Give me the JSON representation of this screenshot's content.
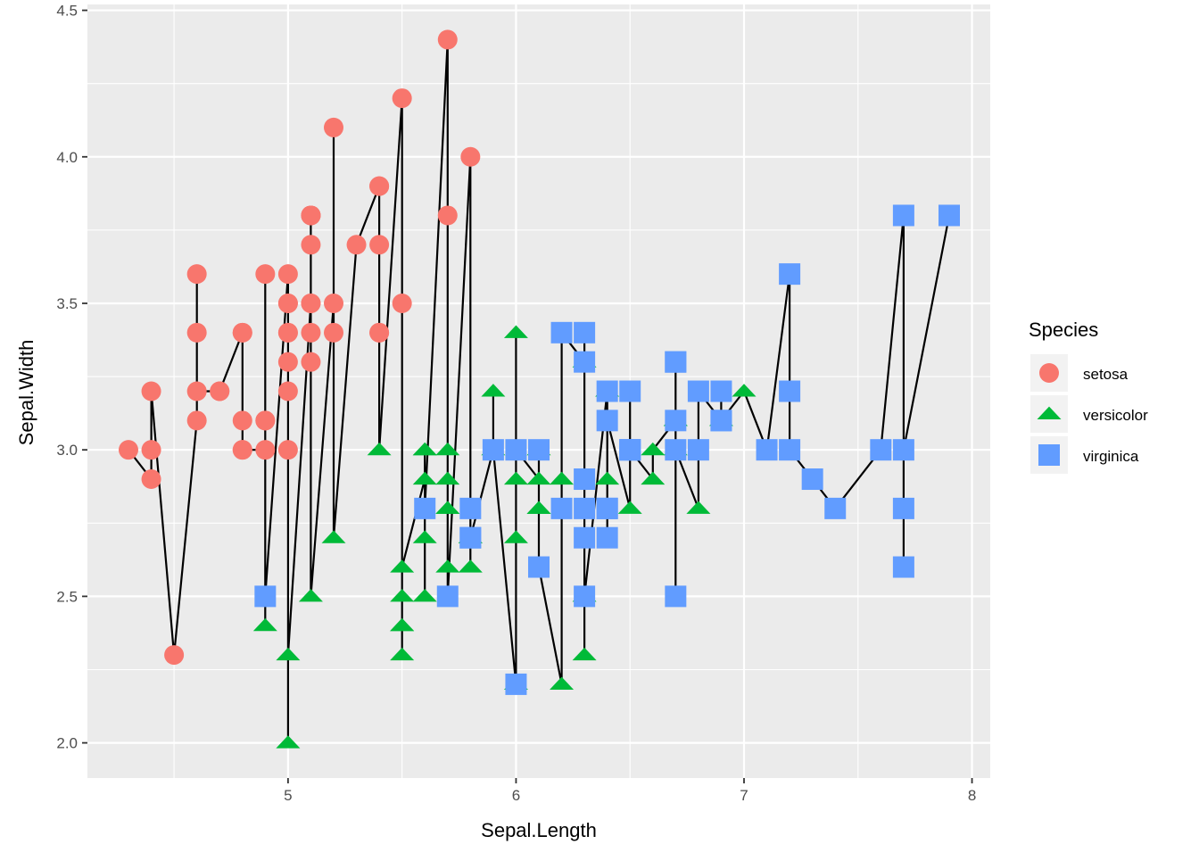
{
  "chart_data": {
    "type": "scatter",
    "xlabel": "Sepal.Length",
    "ylabel": "Sepal.Width",
    "xlim": [
      4.12,
      8.08
    ],
    "ylim": [
      1.88,
      4.52
    ],
    "x_ticks": [
      5,
      6,
      7,
      8
    ],
    "y_ticks": [
      2.0,
      2.5,
      3.0,
      3.5,
      4.0,
      4.5
    ],
    "y_tick_labels": [
      "2.0",
      "2.5",
      "3.0",
      "3.5",
      "4.0",
      "4.5"
    ],
    "grid": true,
    "legend_position": "right",
    "legend_title": "Species",
    "line": {
      "description": "connects all points in order of Sepal.Length",
      "color": "#000000"
    },
    "series": [
      {
        "name": "setosa",
        "shape": "circle",
        "color": "#F8766D",
        "x": [
          5.1,
          4.9,
          4.7,
          4.6,
          5.0,
          5.4,
          4.6,
          5.0,
          4.4,
          4.9,
          5.4,
          4.8,
          4.8,
          4.3,
          5.8,
          5.7,
          5.4,
          5.1,
          5.7,
          5.1,
          5.4,
          5.1,
          4.6,
          5.1,
          4.8,
          5.0,
          5.0,
          5.2,
          5.2,
          4.7,
          4.8,
          5.4,
          5.2,
          5.5,
          4.9,
          5.0,
          5.5,
          4.9,
          4.4,
          5.1,
          5.0,
          4.5,
          4.4,
          5.0,
          5.1,
          4.8,
          5.1,
          4.6,
          5.3,
          5.0
        ],
        "y": [
          3.5,
          3.0,
          3.2,
          3.1,
          3.6,
          3.9,
          3.4,
          3.4,
          2.9,
          3.1,
          3.7,
          3.4,
          3.0,
          3.0,
          4.0,
          4.4,
          3.9,
          3.5,
          3.8,
          3.8,
          3.4,
          3.7,
          3.6,
          3.3,
          3.4,
          3.0,
          3.4,
          3.5,
          3.4,
          3.2,
          3.1,
          3.4,
          4.1,
          4.2,
          3.1,
          3.2,
          3.5,
          3.6,
          3.0,
          3.4,
          3.5,
          2.3,
          3.2,
          3.5,
          3.8,
          3.0,
          3.8,
          3.2,
          3.7,
          3.3
        ]
      },
      {
        "name": "versicolor",
        "shape": "triangle",
        "color": "#00BA38",
        "x": [
          7.0,
          6.4,
          6.9,
          5.5,
          6.5,
          5.7,
          6.3,
          4.9,
          6.6,
          5.2,
          5.0,
          5.9,
          6.0,
          6.1,
          5.6,
          6.7,
          5.6,
          5.8,
          6.2,
          5.6,
          5.9,
          6.1,
          6.3,
          6.1,
          6.4,
          6.6,
          6.8,
          6.7,
          6.0,
          5.7,
          5.5,
          5.5,
          5.8,
          6.0,
          5.4,
          6.0,
          6.7,
          6.3,
          5.6,
          5.5,
          5.5,
          6.1,
          5.8,
          5.0,
          5.6,
          5.7,
          5.7,
          6.2,
          5.1,
          5.7
        ],
        "y": [
          3.2,
          3.2,
          3.1,
          2.3,
          2.8,
          2.8,
          3.3,
          2.4,
          2.9,
          2.7,
          2.0,
          3.0,
          2.2,
          2.9,
          2.9,
          3.1,
          3.0,
          2.7,
          2.2,
          2.5,
          3.2,
          2.8,
          2.5,
          2.8,
          2.9,
          3.0,
          2.8,
          3.0,
          2.9,
          2.6,
          2.4,
          2.4,
          2.7,
          2.7,
          3.0,
          3.4,
          3.1,
          2.3,
          3.0,
          2.5,
          2.6,
          3.0,
          2.6,
          2.3,
          2.7,
          3.0,
          2.9,
          2.9,
          2.5,
          2.8
        ]
      },
      {
        "name": "virginica",
        "shape": "square",
        "color": "#619CFF",
        "x": [
          6.3,
          5.8,
          7.1,
          6.3,
          6.5,
          7.6,
          4.9,
          7.3,
          6.7,
          7.2,
          6.5,
          6.4,
          6.8,
          5.7,
          5.8,
          6.4,
          6.5,
          7.7,
          7.7,
          6.0,
          6.9,
          5.6,
          7.7,
          6.3,
          6.7,
          7.2,
          6.2,
          6.1,
          6.4,
          7.2,
          7.4,
          7.9,
          6.4,
          6.3,
          6.1,
          7.7,
          6.3,
          6.4,
          6.0,
          6.9,
          6.7,
          6.9,
          5.8,
          6.8,
          6.7,
          6.7,
          6.3,
          6.5,
          6.2,
          5.9
        ],
        "y": [
          3.3,
          2.7,
          3.0,
          2.9,
          3.0,
          3.0,
          2.5,
          2.9,
          2.5,
          3.6,
          3.2,
          2.7,
          3.0,
          2.5,
          2.8,
          3.2,
          3.0,
          3.8,
          2.6,
          2.2,
          3.2,
          2.8,
          2.8,
          2.7,
          3.3,
          3.2,
          2.8,
          3.0,
          2.8,
          3.0,
          2.8,
          3.8,
          2.8,
          2.8,
          2.6,
          3.0,
          3.4,
          3.1,
          3.0,
          3.1,
          3.1,
          3.1,
          2.7,
          3.2,
          3.3,
          3.0,
          2.5,
          3.0,
          3.4,
          3.0
        ]
      }
    ]
  }
}
